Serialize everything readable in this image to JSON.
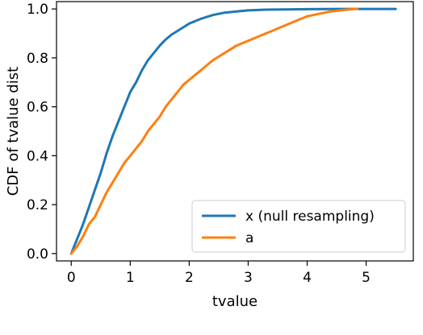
{
  "chart_data": {
    "type": "line",
    "xlabel": "tvalue",
    "ylabel": "CDF of tvalue dist",
    "xlim": [
      -0.25,
      5.8
    ],
    "ylim": [
      -0.03,
      1.03
    ],
    "xticks": [
      0,
      1,
      2,
      3,
      4,
      5
    ],
    "xtick_labels": [
      "0",
      "1",
      "2",
      "3",
      "4",
      "5"
    ],
    "yticks": [
      0.0,
      0.2,
      0.4,
      0.6,
      0.8,
      1.0
    ],
    "ytick_labels": [
      "0.0",
      "0.2",
      "0.4",
      "0.6",
      "0.8",
      "1.0"
    ],
    "grid": false,
    "legend_position": "lower-right",
    "colors": {
      "x": "#1f77b4",
      "a": "#ff7f0e"
    },
    "series": [
      {
        "name": "x (null resampling)",
        "color": "#1f77b4",
        "x": [
          0.0,
          0.05,
          0.1,
          0.2,
          0.3,
          0.4,
          0.5,
          0.6,
          0.7,
          0.8,
          0.9,
          1.0,
          1.1,
          1.2,
          1.3,
          1.4,
          1.5,
          1.6,
          1.7,
          1.8,
          1.9,
          2.0,
          2.2,
          2.4,
          2.6,
          2.8,
          3.0,
          3.3,
          3.6,
          4.0,
          4.5,
          5.0,
          5.5
        ],
        "y": [
          0.0,
          0.03,
          0.06,
          0.12,
          0.19,
          0.26,
          0.33,
          0.41,
          0.48,
          0.54,
          0.6,
          0.66,
          0.7,
          0.75,
          0.79,
          0.82,
          0.85,
          0.875,
          0.895,
          0.91,
          0.925,
          0.94,
          0.96,
          0.975,
          0.985,
          0.99,
          0.994,
          0.997,
          0.998,
          0.999,
          1.0,
          1.0,
          1.0
        ]
      },
      {
        "name": "a",
        "color": "#ff7f0e",
        "x": [
          0.0,
          0.1,
          0.2,
          0.3,
          0.4,
          0.5,
          0.6,
          0.7,
          0.8,
          0.9,
          1.0,
          1.1,
          1.2,
          1.3,
          1.4,
          1.5,
          1.6,
          1.7,
          1.8,
          1.9,
          2.0,
          2.2,
          2.4,
          2.6,
          2.8,
          3.0,
          3.2,
          3.4,
          3.6,
          3.8,
          4.0,
          4.2,
          4.4,
          4.6,
          4.8,
          4.85
        ],
        "y": [
          0.0,
          0.03,
          0.07,
          0.12,
          0.15,
          0.2,
          0.25,
          0.29,
          0.33,
          0.37,
          0.4,
          0.43,
          0.46,
          0.5,
          0.53,
          0.56,
          0.6,
          0.63,
          0.66,
          0.69,
          0.71,
          0.75,
          0.79,
          0.82,
          0.85,
          0.87,
          0.89,
          0.91,
          0.93,
          0.95,
          0.97,
          0.98,
          0.99,
          0.995,
          1.0,
          1.0
        ]
      }
    ]
  }
}
